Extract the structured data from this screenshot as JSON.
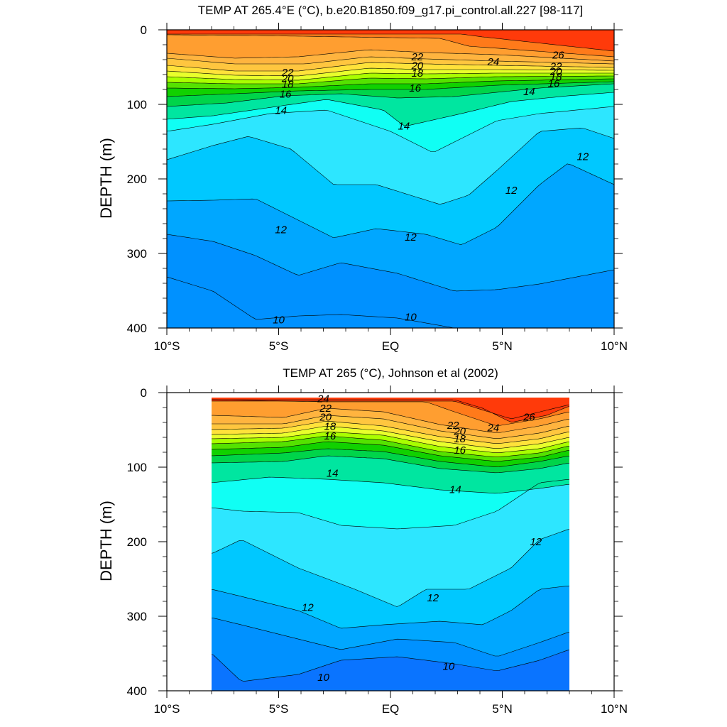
{
  "chart_data": [
    {
      "type": "heatmap",
      "title": "TEMP AT 265.4°E (°C), b.e20.B1850.f09_g17.pi_control.all.227 [98-117]",
      "xlabel": "",
      "ylabel": "DEPTH (m)",
      "xlim": [
        -10,
        10
      ],
      "ylim": [
        400,
        0
      ],
      "x_tick_labels": [
        "10°S",
        "5°S",
        "EQ",
        "5°N",
        "10°N"
      ],
      "y_tick_labels": [
        "0",
        "100",
        "200",
        "300",
        "400"
      ],
      "contour_levels": [
        10,
        11,
        12,
        13,
        14,
        15,
        16,
        17,
        18,
        19,
        20,
        21,
        22,
        23,
        24,
        25,
        26
      ],
      "contour_labels": [
        {
          "text": "22",
          "lat": -4.6,
          "depth": 57
        },
        {
          "text": "20",
          "lat": -4.6,
          "depth": 65
        },
        {
          "text": "18",
          "lat": -4.6,
          "depth": 73
        },
        {
          "text": "16",
          "lat": -4.7,
          "depth": 86
        },
        {
          "text": "14",
          "lat": -4.9,
          "depth": 108
        },
        {
          "text": "12",
          "lat": -4.9,
          "depth": 268
        },
        {
          "text": "10",
          "lat": -5.0,
          "depth": 389
        },
        {
          "text": "22",
          "lat": 1.2,
          "depth": 36
        },
        {
          "text": "20",
          "lat": 1.2,
          "depth": 48
        },
        {
          "text": "18",
          "lat": 1.2,
          "depth": 58
        },
        {
          "text": "16",
          "lat": 1.1,
          "depth": 78
        },
        {
          "text": "14",
          "lat": 0.6,
          "depth": 129
        },
        {
          "text": "12",
          "lat": 0.9,
          "depth": 278
        },
        {
          "text": "10",
          "lat": 0.9,
          "depth": 385
        },
        {
          "text": "24",
          "lat": 4.6,
          "depth": 43
        },
        {
          "text": "26",
          "lat": 7.5,
          "depth": 34
        },
        {
          "text": "22",
          "lat": 7.4,
          "depth": 49
        },
        {
          "text": "20",
          "lat": 7.4,
          "depth": 56
        },
        {
          "text": "18",
          "lat": 7.4,
          "depth": 63
        },
        {
          "text": "16",
          "lat": 7.3,
          "depth": 72
        },
        {
          "text": "14",
          "lat": 6.2,
          "depth": 83
        },
        {
          "text": "12",
          "lat": 5.4,
          "depth": 215
        },
        {
          "text": "12",
          "lat": 8.6,
          "depth": 170
        }
      ]
    },
    {
      "type": "heatmap",
      "title": "TEMP AT 265 (°C), Johnson et al (2002)",
      "xlabel": "",
      "ylabel": "DEPTH (m)",
      "xlim": [
        -10,
        10
      ],
      "ylim": [
        400,
        0
      ],
      "data_lat_range": [
        -8,
        8
      ],
      "x_tick_labels": [
        "10°S",
        "5°S",
        "EQ",
        "5°N",
        "10°N"
      ],
      "y_tick_labels": [
        "0",
        "100",
        "200",
        "300",
        "400"
      ],
      "contour_levels": [
        10,
        11,
        12,
        13,
        14,
        15,
        16,
        17,
        18,
        19,
        20,
        21,
        22,
        23,
        24,
        25,
        26
      ],
      "contour_labels": [
        {
          "text": "24",
          "lat": -3.0,
          "depth": 8
        },
        {
          "text": "22",
          "lat": -2.9,
          "depth": 21
        },
        {
          "text": "20",
          "lat": -2.9,
          "depth": 33
        },
        {
          "text": "18",
          "lat": -2.7,
          "depth": 45
        },
        {
          "text": "16",
          "lat": -2.7,
          "depth": 58
        },
        {
          "text": "14",
          "lat": -2.6,
          "depth": 108
        },
        {
          "text": "12",
          "lat": -3.7,
          "depth": 288
        },
        {
          "text": "10",
          "lat": -3.0,
          "depth": 382
        },
        {
          "text": "22",
          "lat": 2.8,
          "depth": 44
        },
        {
          "text": "20",
          "lat": 3.1,
          "depth": 52
        },
        {
          "text": "18",
          "lat": 3.1,
          "depth": 62
        },
        {
          "text": "16",
          "lat": 3.1,
          "depth": 77
        },
        {
          "text": "24",
          "lat": 4.6,
          "depth": 47
        },
        {
          "text": "26",
          "lat": 6.2,
          "depth": 33
        },
        {
          "text": "14",
          "lat": 2.9,
          "depth": 130
        },
        {
          "text": "12",
          "lat": 1.9,
          "depth": 275
        },
        {
          "text": "12",
          "lat": 6.5,
          "depth": 200
        },
        {
          "text": "10",
          "lat": 2.6,
          "depth": 367
        }
      ]
    }
  ]
}
